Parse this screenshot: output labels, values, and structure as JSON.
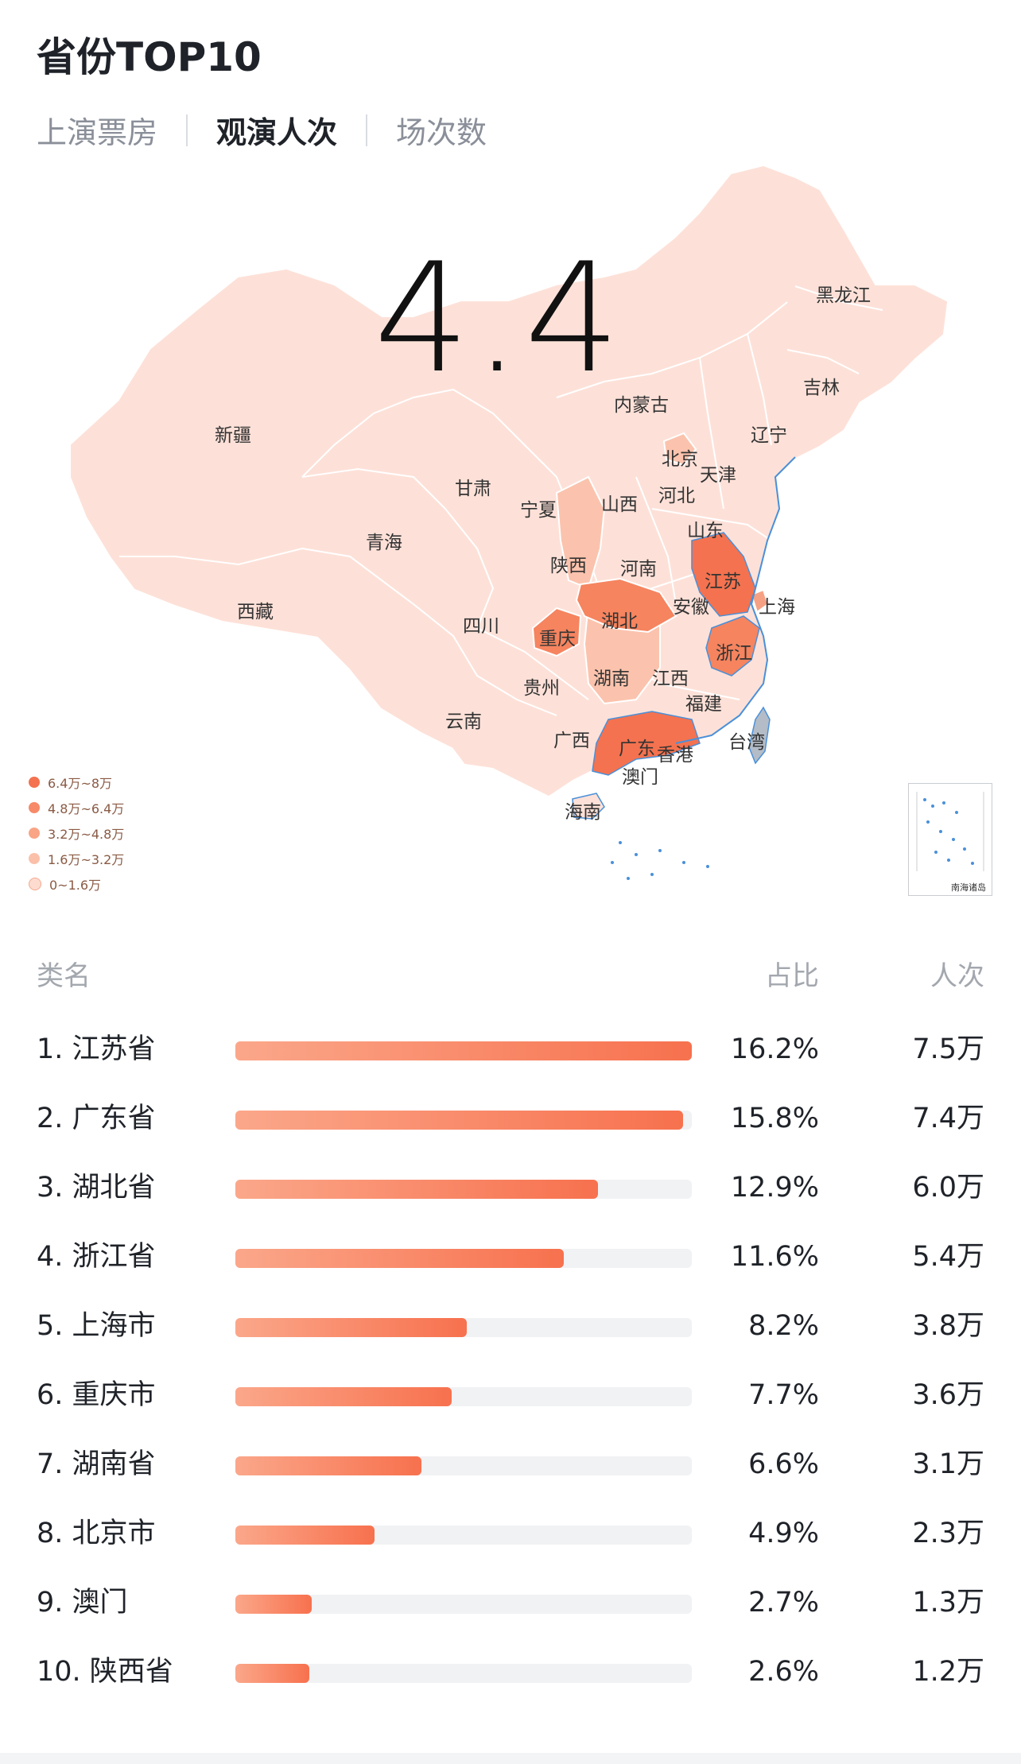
{
  "title": "省份TOP10",
  "tabs": [
    {
      "label": "上演票房",
      "active": false
    },
    {
      "label": "观演人次",
      "active": true
    },
    {
      "label": "场次数",
      "active": false
    }
  ],
  "map": {
    "highlight_value": "4.4",
    "provinces": {
      "xinjiang": "新疆",
      "xizang": "西藏",
      "qinghai": "青海",
      "gansu": "甘肃",
      "neimenggu": "内蒙古",
      "heilongjiang": "黑龙江",
      "jilin": "吉林",
      "liaoning": "辽宁",
      "beijing": "北京",
      "tianjin": "天津",
      "hebei": "河北",
      "shanxi": "山西",
      "ningxia": "宁夏",
      "shandong": "山东",
      "shaanxi": "陕西",
      "henan": "河南",
      "jiangsu": "江苏",
      "shanghai": "上海",
      "anhui": "安徽",
      "hubei": "湖北",
      "sichuan": "四川",
      "chongqing": "重庆",
      "zhejiang": "浙江",
      "hunan": "湖南",
      "jiangxi": "江西",
      "guizhou": "贵州",
      "fujian": "福建",
      "yunnan": "云南",
      "guangxi": "广西",
      "guangdong": "广东",
      "xianggang": "香港",
      "taiwan": "台湾",
      "aomen": "澳门",
      "hainan": "海南"
    },
    "legend": [
      {
        "label": "6.4万~8万",
        "color": "#f4724f"
      },
      {
        "label": "4.8万~6.4万",
        "color": "#f78a69"
      },
      {
        "label": "3.2万~4.8万",
        "color": "#f9a485"
      },
      {
        "label": "1.6万~3.2万",
        "color": "#fbc0aa"
      },
      {
        "label": "0~1.6万",
        "color": "#fddccf"
      }
    ],
    "inset_label": "南海诸岛",
    "colors": {
      "low": "#fde1d8",
      "mid_low": "#fbc3ad",
      "mid": "#f7a184",
      "high": "#f4724f",
      "border": "#ffffff",
      "coast": "#4a90d9",
      "taiwan": "#b3bcc7"
    }
  },
  "list": {
    "header": {
      "name": "类名",
      "ratio": "占比",
      "count": "人次"
    },
    "rows": [
      {
        "name": "1. 江苏省",
        "ratio": "16.2%",
        "count": "7.5万",
        "fraction": 1.0
      },
      {
        "name": "2. 广东省",
        "ratio": "15.8%",
        "count": "7.4万",
        "fraction": 0.98
      },
      {
        "name": "3. 湖北省",
        "ratio": "12.9%",
        "count": "6.0万",
        "fraction": 0.795
      },
      {
        "name": "4. 浙江省",
        "ratio": "11.6%",
        "count": "5.4万",
        "fraction": 0.72
      },
      {
        "name": "5. 上海市",
        "ratio": "8.2%",
        "count": "3.8万",
        "fraction": 0.507
      },
      {
        "name": "6. 重庆市",
        "ratio": "7.7%",
        "count": "3.6万",
        "fraction": 0.473
      },
      {
        "name": "7. 湖南省",
        "ratio": "6.6%",
        "count": "3.1万",
        "fraction": 0.407
      },
      {
        "name": "8. 北京市",
        "ratio": "4.9%",
        "count": "2.3万",
        "fraction": 0.305
      },
      {
        "name": "9. 澳门",
        "ratio": "2.7%",
        "count": "1.3万",
        "fraction": 0.167
      },
      {
        "name": "10. 陕西省",
        "ratio": "2.6%",
        "count": "1.2万",
        "fraction": 0.162
      }
    ]
  }
}
